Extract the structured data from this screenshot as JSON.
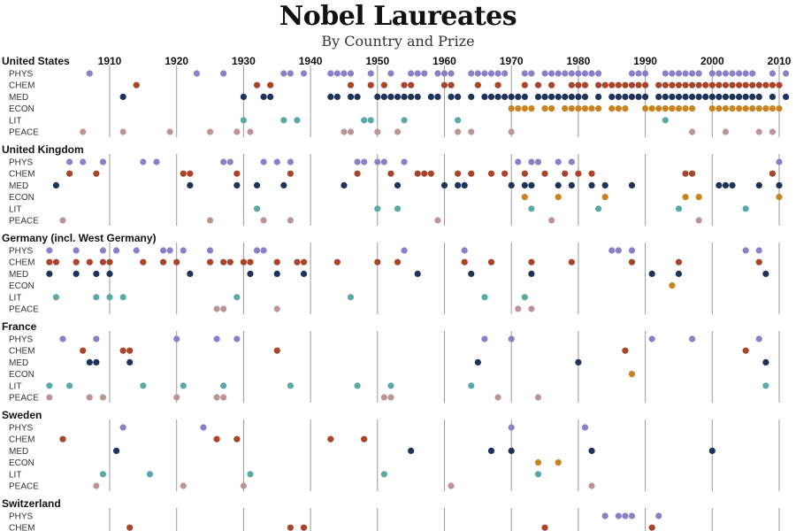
{
  "title": "Nobel Laureates",
  "subtitle": "By Country and Prize",
  "colors": {
    "PHYS": "#8b7fc8",
    "CHEM": "#a8442a",
    "MED": "#1e3358",
    "ECON": "#c8821e",
    "LIT": "#5aa8a8",
    "PEACE": "#bd9495",
    "gridline": "#9a9a9a"
  },
  "chart_data": {
    "type": "scatter",
    "title": "Nobel Laureates",
    "subtitle": "By Country and Prize",
    "x_ticks": [
      1910,
      1920,
      1930,
      1940,
      1950,
      1960,
      1970,
      1980,
      1990,
      2000,
      2010
    ],
    "xlim": [
      1900,
      2012
    ],
    "categories": [
      "PHYS",
      "CHEM",
      "MED",
      "ECON",
      "LIT",
      "PEACE"
    ],
    "countries": [
      {
        "name": "United States",
        "rows": [
          {
            "cat": "PHYS",
            "years": [
              1907,
              1923,
              1927,
              1936,
              1937,
              1939,
              1943,
              1944,
              1945,
              1946,
              1949,
              1952,
              1955,
              1956,
              1957,
              1959,
              1960,
              1961,
              1964,
              1965,
              1966,
              1967,
              1968,
              1969,
              1972,
              1973,
              1975,
              1976,
              1977,
              1978,
              1979,
              1980,
              1981,
              1982,
              1983,
              1988,
              1989,
              1990,
              1993,
              1994,
              1995,
              1996,
              1997,
              1998,
              2000,
              2001,
              2002,
              2003,
              2004,
              2005,
              2006,
              2009,
              2011
            ]
          },
          {
            "cat": "CHEM",
            "years": [
              1914,
              1932,
              1934,
              1946,
              1949,
              1951,
              1954,
              1955,
              1960,
              1961,
              1965,
              1968,
              1972,
              1974,
              1976,
              1979,
              1980,
              1981,
              1983,
              1984,
              1985,
              1986,
              1987,
              1988,
              1989,
              1990,
              1992,
              1993,
              1994,
              1995,
              1996,
              1997,
              1998,
              1999,
              2000,
              2001,
              2002,
              2003,
              2004,
              2005,
              2006,
              2007,
              2008,
              2009,
              2010
            ]
          },
          {
            "cat": "MED",
            "years": [
              1912,
              1930,
              1933,
              1934,
              1943,
              1944,
              1946,
              1947,
              1950,
              1951,
              1952,
              1953,
              1954,
              1955,
              1956,
              1958,
              1959,
              1961,
              1962,
              1964,
              1966,
              1967,
              1968,
              1969,
              1970,
              1971,
              1972,
              1974,
              1975,
              1976,
              1977,
              1978,
              1979,
              1980,
              1981,
              1983,
              1985,
              1986,
              1987,
              1988,
              1989,
              1990,
              1992,
              1993,
              1994,
              1995,
              1996,
              1997,
              1998,
              1999,
              2000,
              2001,
              2002,
              2003,
              2004,
              2005,
              2006,
              2007,
              2009,
              2011
            ]
          },
          {
            "cat": "ECON",
            "years": [
              1970,
              1971,
              1972,
              1973,
              1975,
              1976,
              1978,
              1979,
              1980,
              1981,
              1982,
              1983,
              1985,
              1986,
              1987,
              1990,
              1991,
              1992,
              1993,
              1994,
              1995,
              1996,
              1997,
              2000,
              2001,
              2002,
              2003,
              2004,
              2005,
              2006,
              2007,
              2008,
              2009,
              2010
            ]
          },
          {
            "cat": "LIT",
            "years": [
              1930,
              1936,
              1938,
              1948,
              1949,
              1954,
              1962,
              1993
            ]
          },
          {
            "cat": "PEACE",
            "years": [
              1906,
              1912,
              1919,
              1925,
              1929,
              1931,
              1945,
              1946,
              1950,
              1953,
              1962,
              1964,
              1970,
              1997,
              2002,
              2007,
              2009
            ]
          }
        ]
      },
      {
        "name": "United Kingdom",
        "rows": [
          {
            "cat": "PHYS",
            "years": [
              1904,
              1906,
              1909,
              1915,
              1917,
              1927,
              1928,
              1933,
              1935,
              1937,
              1947,
              1948,
              1950,
              1951,
              1954,
              1971,
              1973,
              1974,
              1977,
              1979,
              2010
            ]
          },
          {
            "cat": "CHEM",
            "years": [
              1904,
              1908,
              1921,
              1922,
              1929,
              1937,
              1947,
              1952,
              1956,
              1957,
              1958,
              1962,
              1964,
              1967,
              1969,
              1972,
              1975,
              1978,
              1980,
              1982,
              1996,
              1997,
              2009
            ]
          },
          {
            "cat": "MED",
            "years": [
              1902,
              1922,
              1929,
              1932,
              1936,
              1945,
              1953,
              1960,
              1962,
              1963,
              1970,
              1972,
              1973,
              1977,
              1979,
              1982,
              1984,
              1988,
              2001,
              2002,
              2003,
              2007,
              2010
            ]
          },
          {
            "cat": "ECON",
            "years": [
              1972,
              1977,
              1984,
              1996,
              1998,
              2010
            ]
          },
          {
            "cat": "LIT",
            "years": [
              1932,
              1950,
              1953,
              1973,
              1983,
              1995,
              2005
            ]
          },
          {
            "cat": "PEACE",
            "years": [
              1903,
              1925,
              1933,
              1937,
              1959,
              1976,
              1998
            ]
          }
        ]
      },
      {
        "name": "Germany (incl. West Germany)",
        "rows": [
          {
            "cat": "PHYS",
            "years": [
              1901,
              1905,
              1909,
              1911,
              1914,
              1918,
              1919,
              1921,
              1925,
              1932,
              1933,
              1954,
              1963,
              1985,
              1986,
              1988,
              2005,
              2007
            ]
          },
          {
            "cat": "CHEM",
            "years": [
              1901,
              1902,
              1905,
              1907,
              1909,
              1910,
              1915,
              1918,
              1920,
              1925,
              1927,
              1928,
              1930,
              1931,
              1935,
              1938,
              1939,
              1944,
              1950,
              1953,
              1963,
              1967,
              1973,
              1979,
              1988,
              1995,
              2007
            ]
          },
          {
            "cat": "MED",
            "years": [
              1901,
              1905,
              1908,
              1910,
              1922,
              1931,
              1935,
              1939,
              1956,
              1964,
              1973,
              1991,
              1995,
              2008
            ]
          },
          {
            "cat": "ECON",
            "years": [
              1994
            ]
          },
          {
            "cat": "LIT",
            "years": [
              1902,
              1908,
              1910,
              1912,
              1929,
              1946,
              1966,
              1972
            ]
          },
          {
            "cat": "PEACE",
            "years": [
              1926,
              1927,
              1935,
              1971,
              1973
            ]
          }
        ]
      },
      {
        "name": "France",
        "rows": [
          {
            "cat": "PHYS",
            "years": [
              1903,
              1908,
              1920,
              1926,
              1929,
              1966,
              1970,
              1991,
              1997,
              2007
            ]
          },
          {
            "cat": "CHEM",
            "years": [
              1906,
              1912,
              1913,
              1935,
              1987,
              2005
            ]
          },
          {
            "cat": "MED",
            "years": [
              1907,
              1908,
              1913,
              1965,
              1980,
              2008
            ]
          },
          {
            "cat": "ECON",
            "years": [
              1988
            ]
          },
          {
            "cat": "LIT",
            "years": [
              1901,
              1904,
              1915,
              1921,
              1927,
              1937,
              1947,
              1952,
              1964,
              2008
            ]
          },
          {
            "cat": "PEACE",
            "years": [
              1901,
              1907,
              1909,
              1920,
              1926,
              1927,
              1951,
              1952,
              1968,
              1974
            ]
          }
        ]
      },
      {
        "name": "Sweden",
        "rows": [
          {
            "cat": "PHYS",
            "years": [
              1912,
              1924,
              1970,
              1981
            ]
          },
          {
            "cat": "CHEM",
            "years": [
              1903,
              1926,
              1929,
              1943,
              1948
            ]
          },
          {
            "cat": "MED",
            "years": [
              1911,
              1955,
              1967,
              1970,
              1982,
              2000
            ]
          },
          {
            "cat": "ECON",
            "years": [
              1974,
              1977
            ]
          },
          {
            "cat": "LIT",
            "years": [
              1909,
              1916,
              1931,
              1951,
              1974
            ]
          },
          {
            "cat": "PEACE",
            "years": [
              1908,
              1921,
              1930,
              1961,
              1982
            ]
          }
        ]
      },
      {
        "name": "Switzerland",
        "rows": [
          {
            "cat": "PHYS",
            "years": [
              1984,
              1986,
              1987,
              1988,
              1992
            ]
          },
          {
            "cat": "CHEM",
            "years": [
              1913,
              1937,
              1939,
              1975,
              1991
            ]
          }
        ]
      }
    ]
  }
}
